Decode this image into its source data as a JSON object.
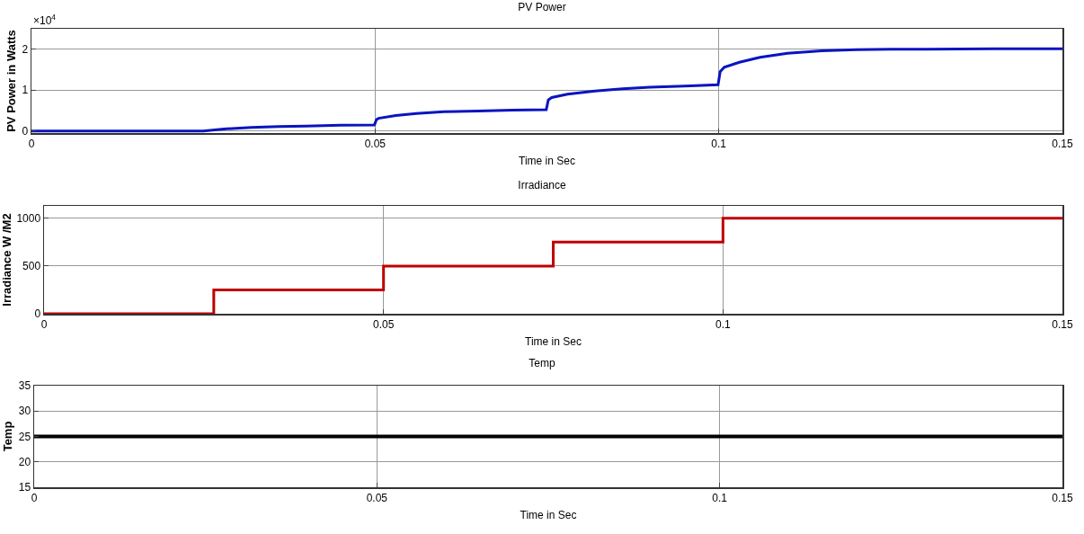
{
  "chart_data": [
    {
      "type": "line",
      "title": "PV Power",
      "xlabel": "Time in Sec",
      "ylabel": "PV Power in Watts",
      "annotations": [
        "×10$^{4}$"
      ],
      "x": [
        0,
        0.025,
        0.028,
        0.032,
        0.036,
        0.04,
        0.045,
        0.0499,
        0.0502,
        0.0505,
        0.053,
        0.056,
        0.06,
        0.065,
        0.07,
        0.0749,
        0.0752,
        0.0757,
        0.078,
        0.082,
        0.086,
        0.09,
        0.095,
        0.0999,
        0.1002,
        0.1008,
        0.103,
        0.106,
        0.11,
        0.115,
        0.12,
        0.125,
        0.13,
        0.14,
        0.15
      ],
      "series": [
        {
          "color": "#0a14c0",
          "values": [
            0,
            0,
            0.05,
            0.09,
            0.11,
            0.12,
            0.14,
            0.15,
            0.28,
            0.31,
            0.38,
            0.43,
            0.47,
            0.49,
            0.51,
            0.52,
            0.76,
            0.82,
            0.9,
            0.98,
            1.03,
            1.07,
            1.1,
            1.13,
            1.45,
            1.56,
            1.68,
            1.8,
            1.9,
            1.96,
            1.99,
            2,
            2,
            2.01,
            2.01
          ]
        }
      ],
      "xlim": [
        0,
        0.15
      ],
      "xticks": [
        0,
        0.05,
        0.1,
        0.15
      ],
      "ylim": [
        -0.05,
        2.5
      ],
      "yticks": [
        0,
        1,
        2
      ],
      "grid": true,
      "marker": "none",
      "line_style": "solid"
    },
    {
      "type": "step",
      "title": "Irradiance",
      "xlabel": "Time in Sec",
      "ylabel": "Irradiance W /M2",
      "x": [
        0,
        0.025,
        0.05,
        0.075,
        0.1,
        0.15
      ],
      "series": [
        {
          "color": "#c00000",
          "values": [
            0,
            250,
            500,
            750,
            1000,
            1000
          ]
        }
      ],
      "xlim": [
        0,
        0.15
      ],
      "xticks": [
        0,
        0.05,
        0.1,
        0.15
      ],
      "ylim": [
        0,
        1130
      ],
      "yticks": [
        0,
        500,
        1000
      ],
      "grid": true,
      "marker": "none",
      "line_style": "solid"
    },
    {
      "type": "line",
      "title": "Temp",
      "xlabel": "Time in Sec",
      "ylabel": "Temp",
      "x": [
        0,
        0.15
      ],
      "series": [
        {
          "color": "#000000",
          "values": [
            25,
            25
          ]
        }
      ],
      "xlim": [
        0,
        0.15
      ],
      "xticks": [
        0,
        0.05,
        0.1,
        0.15
      ],
      "ylim": [
        15,
        35
      ],
      "yticks": [
        15,
        20,
        25,
        30,
        35
      ],
      "grid": true,
      "marker": "none",
      "line_style": "solid"
    }
  ]
}
